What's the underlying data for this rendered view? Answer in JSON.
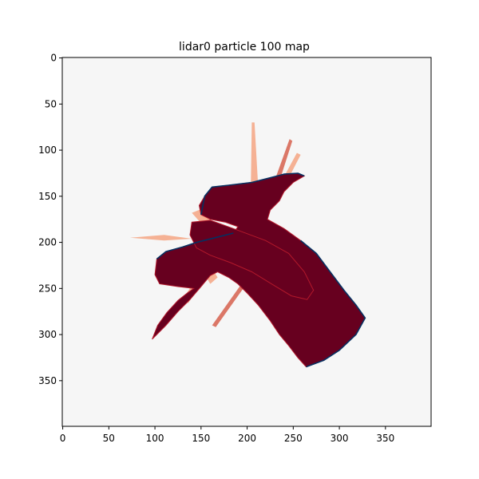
{
  "chart_data": {
    "type": "heatmap",
    "title": "lidar0 particle 100 map",
    "xlabel": "",
    "ylabel": "",
    "xlim": [
      0,
      399
    ],
    "ylim": [
      399,
      0
    ],
    "x_ticks": [
      0,
      50,
      100,
      150,
      200,
      250,
      300,
      350
    ],
    "y_ticks": [
      0,
      50,
      100,
      150,
      200,
      250,
      300,
      350
    ],
    "grid": false,
    "colormap": "RdBu_r",
    "colors": {
      "background": "#f6f6f6",
      "occupied": "#67001f",
      "free_edge": "#053061",
      "ray_light": "#f4a582",
      "ray_mid": "#d6604d",
      "ray_dark": "#b2182b"
    },
    "map_regions": [
      {
        "name": "occupied-core",
        "level": "high",
        "points": [
          [
            97,
            305
          ],
          [
            103,
            290
          ],
          [
            113,
            276
          ],
          [
            125,
            263
          ],
          [
            135,
            255
          ],
          [
            142,
            250
          ],
          [
            125,
            248
          ],
          [
            105,
            245
          ],
          [
            100,
            235
          ],
          [
            102,
            218
          ],
          [
            112,
            210
          ],
          [
            130,
            205
          ],
          [
            145,
            200
          ],
          [
            165,
            195
          ],
          [
            185,
            190
          ],
          [
            190,
            183
          ],
          [
            176,
            178
          ],
          [
            160,
            175
          ],
          [
            150,
            170
          ],
          [
            148,
            160
          ],
          [
            154,
            150
          ],
          [
            162,
            140
          ],
          [
            180,
            138
          ],
          [
            205,
            135
          ],
          [
            225,
            130
          ],
          [
            240,
            126
          ],
          [
            255,
            125
          ],
          [
            262,
            128
          ],
          [
            250,
            135
          ],
          [
            240,
            145
          ],
          [
            235,
            155
          ],
          [
            225,
            165
          ],
          [
            222,
            175
          ],
          [
            240,
            185
          ],
          [
            258,
            198
          ],
          [
            275,
            212
          ],
          [
            290,
            232
          ],
          [
            305,
            252
          ],
          [
            318,
            268
          ],
          [
            328,
            282
          ],
          [
            318,
            300
          ],
          [
            300,
            317
          ],
          [
            283,
            328
          ],
          [
            264,
            335
          ],
          [
            255,
            325
          ],
          [
            245,
            312
          ],
          [
            235,
            300
          ],
          [
            225,
            285
          ],
          [
            212,
            268
          ],
          [
            200,
            255
          ],
          [
            190,
            245
          ],
          [
            180,
            238
          ],
          [
            168,
            232
          ],
          [
            160,
            236
          ],
          [
            150,
            248
          ],
          [
            138,
            262
          ],
          [
            125,
            275
          ],
          [
            112,
            290
          ]
        ]
      },
      {
        "name": "occupied-arm",
        "level": "high",
        "points": [
          [
            140,
            178
          ],
          [
            160,
            176
          ],
          [
            185,
            185
          ],
          [
            220,
            198
          ],
          [
            245,
            212
          ],
          [
            262,
            232
          ],
          [
            272,
            252
          ],
          [
            265,
            262
          ],
          [
            248,
            258
          ],
          [
            228,
            246
          ],
          [
            205,
            232
          ],
          [
            182,
            222
          ],
          [
            160,
            214
          ],
          [
            145,
            206
          ],
          [
            138,
            192
          ]
        ]
      }
    ],
    "map_rays": [
      {
        "name": "ray-left",
        "level": "light",
        "points": [
          [
            73,
            195
          ],
          [
            110,
            192
          ],
          [
            140,
            196
          ],
          [
            110,
            198
          ]
        ]
      },
      {
        "name": "ray-top-1",
        "level": "light",
        "points": [
          [
            205,
            70
          ],
          [
            208,
            70
          ],
          [
            212,
            140
          ],
          [
            204,
            140
          ]
        ]
      },
      {
        "name": "ray-top-2",
        "level": "mid",
        "points": [
          [
            246,
            88
          ],
          [
            249,
            90
          ],
          [
            233,
            140
          ],
          [
            228,
            138
          ]
        ]
      },
      {
        "name": "ray-top-3",
        "level": "light",
        "points": [
          [
            254,
            103
          ],
          [
            258,
            105
          ],
          [
            240,
            140
          ],
          [
            235,
            138
          ]
        ]
      },
      {
        "name": "ray-lower-1",
        "level": "mid",
        "points": [
          [
            162,
            290
          ],
          [
            166,
            292
          ],
          [
            210,
            230
          ],
          [
            206,
            228
          ]
        ]
      },
      {
        "name": "ray-lower-2",
        "level": "light",
        "points": [
          [
            130,
            262
          ],
          [
            136,
            266
          ],
          [
            158,
            232
          ],
          [
            152,
            228
          ]
        ]
      },
      {
        "name": "ray-left-2",
        "level": "light",
        "points": [
          [
            150,
            228
          ],
          [
            160,
            245
          ],
          [
            168,
            238
          ],
          [
            158,
            222
          ]
        ]
      },
      {
        "name": "ray-upper-left",
        "level": "light",
        "points": [
          [
            140,
            168
          ],
          [
            150,
            164
          ],
          [
            166,
            182
          ],
          [
            156,
            186
          ]
        ]
      }
    ],
    "map_edges": [
      {
        "name": "edge-top",
        "points": [
          [
            150,
            170
          ],
          [
            154,
            150
          ],
          [
            162,
            140
          ],
          [
            180,
            138
          ],
          [
            205,
            135
          ],
          [
            225,
            130
          ],
          [
            240,
            126
          ],
          [
            255,
            125
          ],
          [
            262,
            128
          ]
        ]
      },
      {
        "name": "edge-right",
        "points": [
          [
            258,
            198
          ],
          [
            275,
            212
          ],
          [
            290,
            232
          ],
          [
            305,
            252
          ],
          [
            318,
            268
          ],
          [
            328,
            282
          ],
          [
            318,
            300
          ],
          [
            300,
            317
          ],
          [
            283,
            328
          ],
          [
            264,
            335
          ]
        ]
      },
      {
        "name": "edge-left",
        "points": [
          [
            102,
            218
          ],
          [
            112,
            210
          ],
          [
            130,
            205
          ],
          [
            145,
            200
          ],
          [
            165,
            195
          ],
          [
            185,
            190
          ]
        ]
      }
    ]
  }
}
